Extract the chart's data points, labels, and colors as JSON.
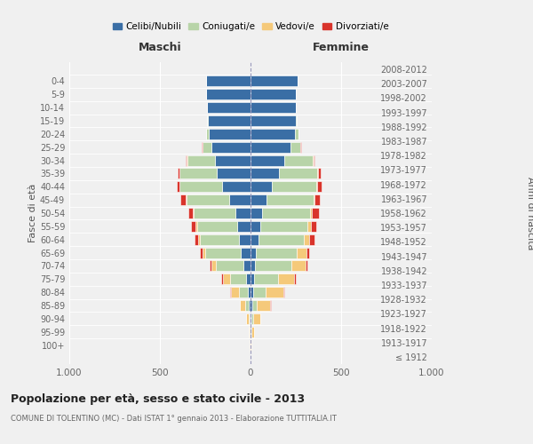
{
  "age_groups": [
    "100+",
    "95-99",
    "90-94",
    "85-89",
    "80-84",
    "75-79",
    "70-74",
    "65-69",
    "60-64",
    "55-59",
    "50-54",
    "45-49",
    "40-44",
    "35-39",
    "30-34",
    "25-29",
    "20-24",
    "15-19",
    "10-14",
    "5-9",
    "0-4"
  ],
  "birth_years": [
    "≤ 1912",
    "1913-1917",
    "1918-1922",
    "1923-1927",
    "1928-1932",
    "1933-1937",
    "1938-1942",
    "1943-1947",
    "1948-1952",
    "1953-1957",
    "1958-1962",
    "1963-1967",
    "1968-1972",
    "1973-1977",
    "1978-1982",
    "1983-1987",
    "1988-1992",
    "1993-1997",
    "1998-2002",
    "2003-2007",
    "2008-2012"
  ],
  "colors": {
    "celibi": "#3a6ea5",
    "coniugati": "#b8d4a8",
    "vedovi": "#f5c97a",
    "divorziati": "#d9342b"
  },
  "maschi": {
    "celibi": [
      2,
      3,
      5,
      10,
      15,
      25,
      40,
      55,
      65,
      75,
      85,
      120,
      155,
      185,
      195,
      215,
      230,
      235,
      240,
      245,
      245
    ],
    "coniugati": [
      0,
      2,
      5,
      20,
      50,
      90,
      150,
      195,
      215,
      220,
      230,
      235,
      235,
      205,
      155,
      50,
      15,
      5,
      0,
      0,
      0
    ],
    "vedovi": [
      1,
      5,
      15,
      30,
      45,
      35,
      25,
      15,
      10,
      8,
      5,
      3,
      2,
      1,
      1,
      0,
      0,
      0,
      0,
      0,
      0
    ],
    "divorziati": [
      0,
      0,
      0,
      0,
      5,
      10,
      10,
      12,
      20,
      25,
      25,
      30,
      15,
      10,
      5,
      3,
      0,
      0,
      0,
      0,
      0
    ]
  },
  "femmine": {
    "celibi": [
      2,
      3,
      5,
      10,
      15,
      20,
      25,
      30,
      45,
      55,
      65,
      90,
      120,
      155,
      185,
      220,
      245,
      250,
      250,
      250,
      260
    ],
    "coniugati": [
      0,
      2,
      10,
      25,
      70,
      130,
      200,
      225,
      250,
      260,
      265,
      260,
      245,
      215,
      160,
      55,
      20,
      5,
      0,
      0,
      0
    ],
    "vedovi": [
      3,
      15,
      40,
      75,
      95,
      90,
      80,
      55,
      30,
      18,
      10,
      5,
      3,
      2,
      1,
      0,
      0,
      0,
      0,
      0,
      0
    ],
    "divorziati": [
      0,
      0,
      0,
      2,
      5,
      8,
      10,
      12,
      30,
      30,
      35,
      28,
      22,
      15,
      8,
      3,
      2,
      0,
      0,
      0,
      0
    ]
  },
  "xlim": 1000,
  "xticks": [
    -1000,
    -500,
    0,
    500,
    1000
  ],
  "xticklabels": [
    "1.000",
    "500",
    "0",
    "500",
    "1.000"
  ],
  "title": "Popolazione per età, sesso e stato civile - 2013",
  "subtitle": "COMUNE DI TOLENTINO (MC) - Dati ISTAT 1° gennaio 2013 - Elaborazione TUTTITALIA.IT",
  "ylabel_left": "Fasce di età",
  "ylabel_right": "Anni di nascita",
  "legend_labels": [
    "Celibi/Nubili",
    "Coniugati/e",
    "Vedovi/e",
    "Divorziati/e"
  ],
  "maschi_label": "Maschi",
  "femmine_label": "Femmine",
  "bg_color": "#f0f0f0",
  "bar_edge_color": "white"
}
